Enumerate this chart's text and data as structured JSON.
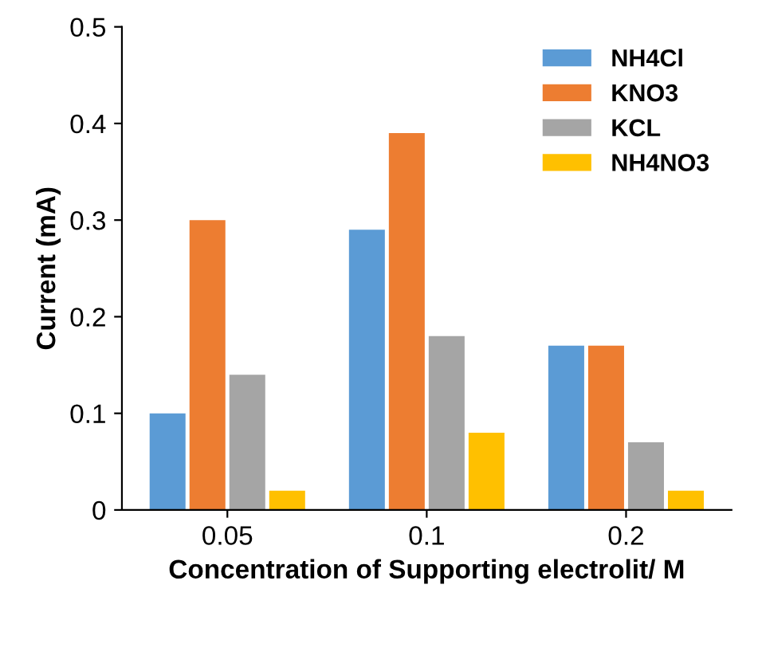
{
  "chart_data": {
    "type": "bar",
    "xlabel": "Concentration of Supporting electrolit/ M",
    "ylabel": "Current (mA)",
    "categories": [
      "0.05",
      "0.1",
      "0.2"
    ],
    "series": [
      {
        "name": "NH4Cl",
        "color": "#5b9bd5",
        "values": [
          0.1,
          0.29,
          0.17
        ]
      },
      {
        "name": "KNO3",
        "color": "#ed7d31",
        "values": [
          0.3,
          0.39,
          0.17
        ]
      },
      {
        "name": "KCL",
        "color": "#a5a5a5",
        "values": [
          0.14,
          0.18,
          0.07
        ]
      },
      {
        "name": "NH4NO3",
        "color": "#ffc000",
        "values": [
          0.02,
          0.08,
          0.02
        ]
      }
    ],
    "ylim": [
      0,
      0.5
    ],
    "yticks": [
      {
        "value": 0,
        "label": "0"
      },
      0.1,
      0.2,
      0.3,
      0.4,
      0.5
    ],
    "grid": false,
    "legend": "top right"
  }
}
